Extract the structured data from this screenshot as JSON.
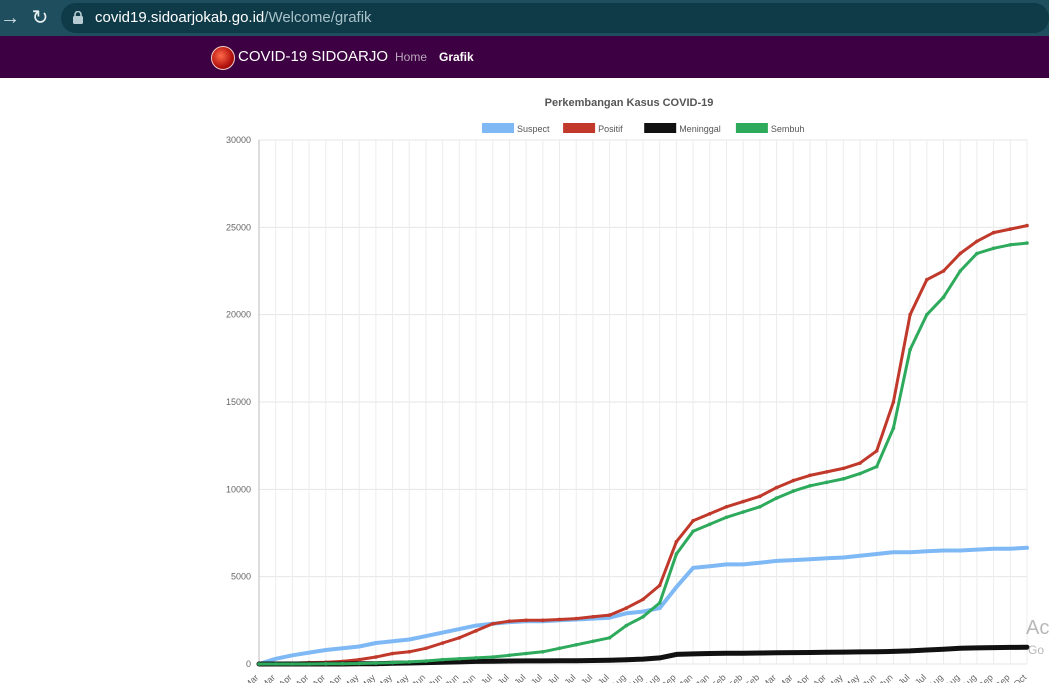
{
  "browser": {
    "url_host": "covid19.sidoarjokab.go.id",
    "url_path": "/Welcome/grafik",
    "back_icon": "arrow-right-icon",
    "reload_icon": "reload-icon",
    "lock_icon": "lock-icon"
  },
  "navbar": {
    "brand": "COVID-19 SIDOARJO",
    "items": [
      {
        "label": "Home",
        "active": false
      },
      {
        "label": "Grafik",
        "active": true
      }
    ],
    "background": "#3d0042"
  },
  "watermark": {
    "line1": "Ac",
    "line2": "Go"
  },
  "chart_data": {
    "type": "line",
    "title": "Perkembangan Kasus COVID-19",
    "xlabel": "",
    "ylabel": "",
    "ylim": [
      0,
      30000
    ],
    "yticks": [
      0,
      5000,
      10000,
      15000,
      20000,
      25000,
      30000
    ],
    "grid": true,
    "legend_position": "top",
    "x_ticks": [
      "Mar",
      "Mar",
      "Apr",
      "Apr",
      "Apr",
      "Apr",
      "May",
      "May",
      "May",
      "May",
      "Jun",
      "Jun",
      "Jun",
      "Jun",
      "Jul",
      "Jul",
      "Jul",
      "Jul",
      "Jul",
      "Jul",
      "Jul",
      "Jul",
      "Aug",
      "Aug",
      "Aug",
      "Sep",
      "Jan",
      "Jan",
      "Feb",
      "Feb",
      "Feb",
      "Mar",
      "Mar",
      "Apr",
      "Apr",
      "May",
      "May",
      "Jun",
      "Jun",
      "Jul",
      "Jul",
      "Aug",
      "Aug",
      "Aug",
      "Sep",
      "Sep",
      "Oct"
    ],
    "series": [
      {
        "name": "Suspect",
        "color": "#7fb9f5",
        "width": 4,
        "values": [
          0,
          300,
          500,
          650,
          800,
          900,
          1000,
          1200,
          1300,
          1400,
          1600,
          1800,
          2000,
          2200,
          2300,
          2400,
          2450,
          2450,
          2500,
          2550,
          2600,
          2650,
          2900,
          3000,
          3200,
          4400,
          5500,
          5600,
          5700,
          5700,
          5800,
          5900,
          5950,
          6000,
          6050,
          6100,
          6200,
          6300,
          6400,
          6400,
          6450,
          6500,
          6500,
          6550,
          6600,
          6600,
          6650
        ]
      },
      {
        "name": "Positif",
        "color": "#c0392b",
        "width": 3,
        "values": [
          0,
          20,
          50,
          80,
          100,
          150,
          250,
          400,
          600,
          700,
          900,
          1200,
          1500,
          1900,
          2300,
          2450,
          2500,
          2500,
          2550,
          2600,
          2700,
          2800,
          3200,
          3700,
          4500,
          7000,
          8200,
          8600,
          9000,
          9300,
          9600,
          10100,
          10500,
          10800,
          11000,
          11200,
          11500,
          12200,
          15000,
          20000,
          22000,
          22500,
          23500,
          24200,
          24700,
          24900,
          25100
        ]
      },
      {
        "name": "Meninggal",
        "color": "#111111",
        "width": 5,
        "values": [
          0,
          0,
          0,
          0,
          0,
          0,
          10,
          20,
          40,
          60,
          80,
          100,
          120,
          150,
          160,
          170,
          175,
          180,
          185,
          190,
          200,
          220,
          240,
          280,
          350,
          550,
          580,
          600,
          610,
          620,
          630,
          640,
          650,
          660,
          670,
          680,
          690,
          700,
          720,
          750,
          800,
          850,
          900,
          920,
          940,
          950,
          960
        ]
      },
      {
        "name": "Sembuh",
        "color": "#2eaa5c",
        "width": 3,
        "values": [
          0,
          0,
          0,
          0,
          10,
          20,
          30,
          50,
          80,
          120,
          170,
          250,
          300,
          350,
          400,
          500,
          600,
          700,
          900,
          1100,
          1300,
          1500,
          2200,
          2700,
          3500,
          6300,
          7600,
          8000,
          8400,
          8700,
          9000,
          9500,
          9900,
          10200,
          10400,
          10600,
          10900,
          11300,
          13500,
          18000,
          20000,
          21000,
          22500,
          23500,
          23800,
          24000,
          24100
        ]
      }
    ]
  }
}
